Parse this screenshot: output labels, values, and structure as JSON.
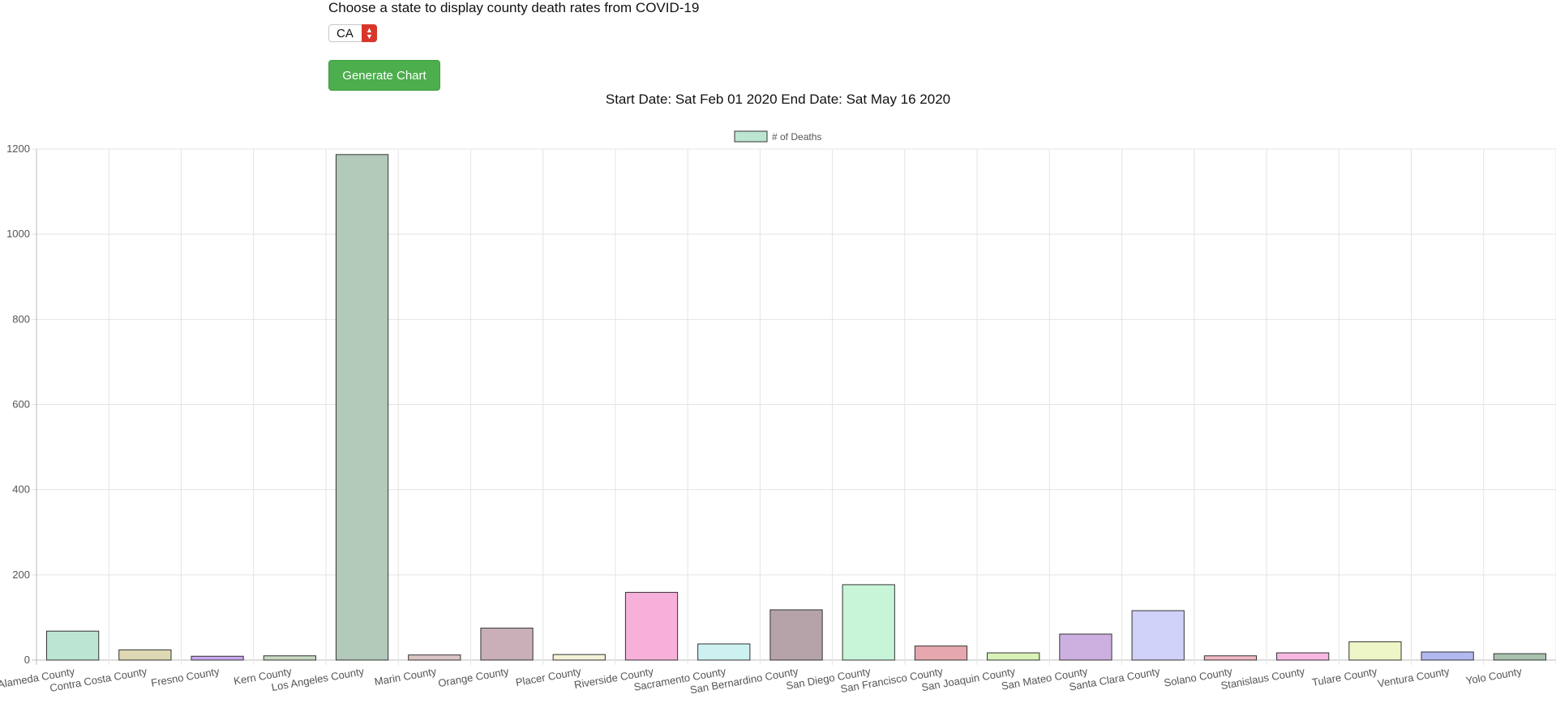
{
  "prompt": "Choose a state to display county death rates from COVID-19",
  "state_select": {
    "value": "CA"
  },
  "generate_button_label": "Generate Chart",
  "date_range": "Start Date: Sat Feb 01 2020 End Date: Sat May 16 2020",
  "chart_data": {
    "type": "bar",
    "legend": {
      "label": "# of Deaths",
      "position": "top",
      "color": "#bde6d2"
    },
    "categories": [
      "Alameda County",
      "Contra Costa County",
      "Fresno County",
      "Kern County",
      "Los Angeles County",
      "Marin County",
      "Orange County",
      "Placer County",
      "Riverside County",
      "Sacramento County",
      "San Bernardino County",
      "San Diego County",
      "San Francisco County",
      "San Joaquin County",
      "San Mateo County",
      "Santa Clara County",
      "Solano County",
      "Stanislaus County",
      "Tulare County",
      "Ventura County",
      "Yolo County"
    ],
    "series": [
      {
        "name": "# of Deaths",
        "values": [
          68,
          24,
          9,
          10,
          1187,
          12,
          75,
          13,
          159,
          38,
          118,
          177,
          33,
          17,
          61,
          116,
          10,
          17,
          43,
          19,
          15
        ],
        "colors": [
          "#bde6d2",
          "#ded9b4",
          "#c8a8f0",
          "#c8d9c0",
          "#b3c9b9",
          "#dcc5c5",
          "#c9b0b8",
          "#f4f1d8",
          "#f6b0d9",
          "#cdf0f1",
          "#b6a3aa",
          "#c8f4d8",
          "#e6a8ae",
          "#d9f2b8",
          "#cdb0e0",
          "#d0d1f8",
          "#f2b8c4",
          "#f9b8e4",
          "#eef5c7",
          "#b1b9f0",
          "#a9c2ad"
        ]
      }
    ],
    "ylim": [
      0,
      1200
    ],
    "yticks": [
      0,
      200,
      400,
      600,
      800,
      1000,
      1200
    ],
    "grid": true
  }
}
